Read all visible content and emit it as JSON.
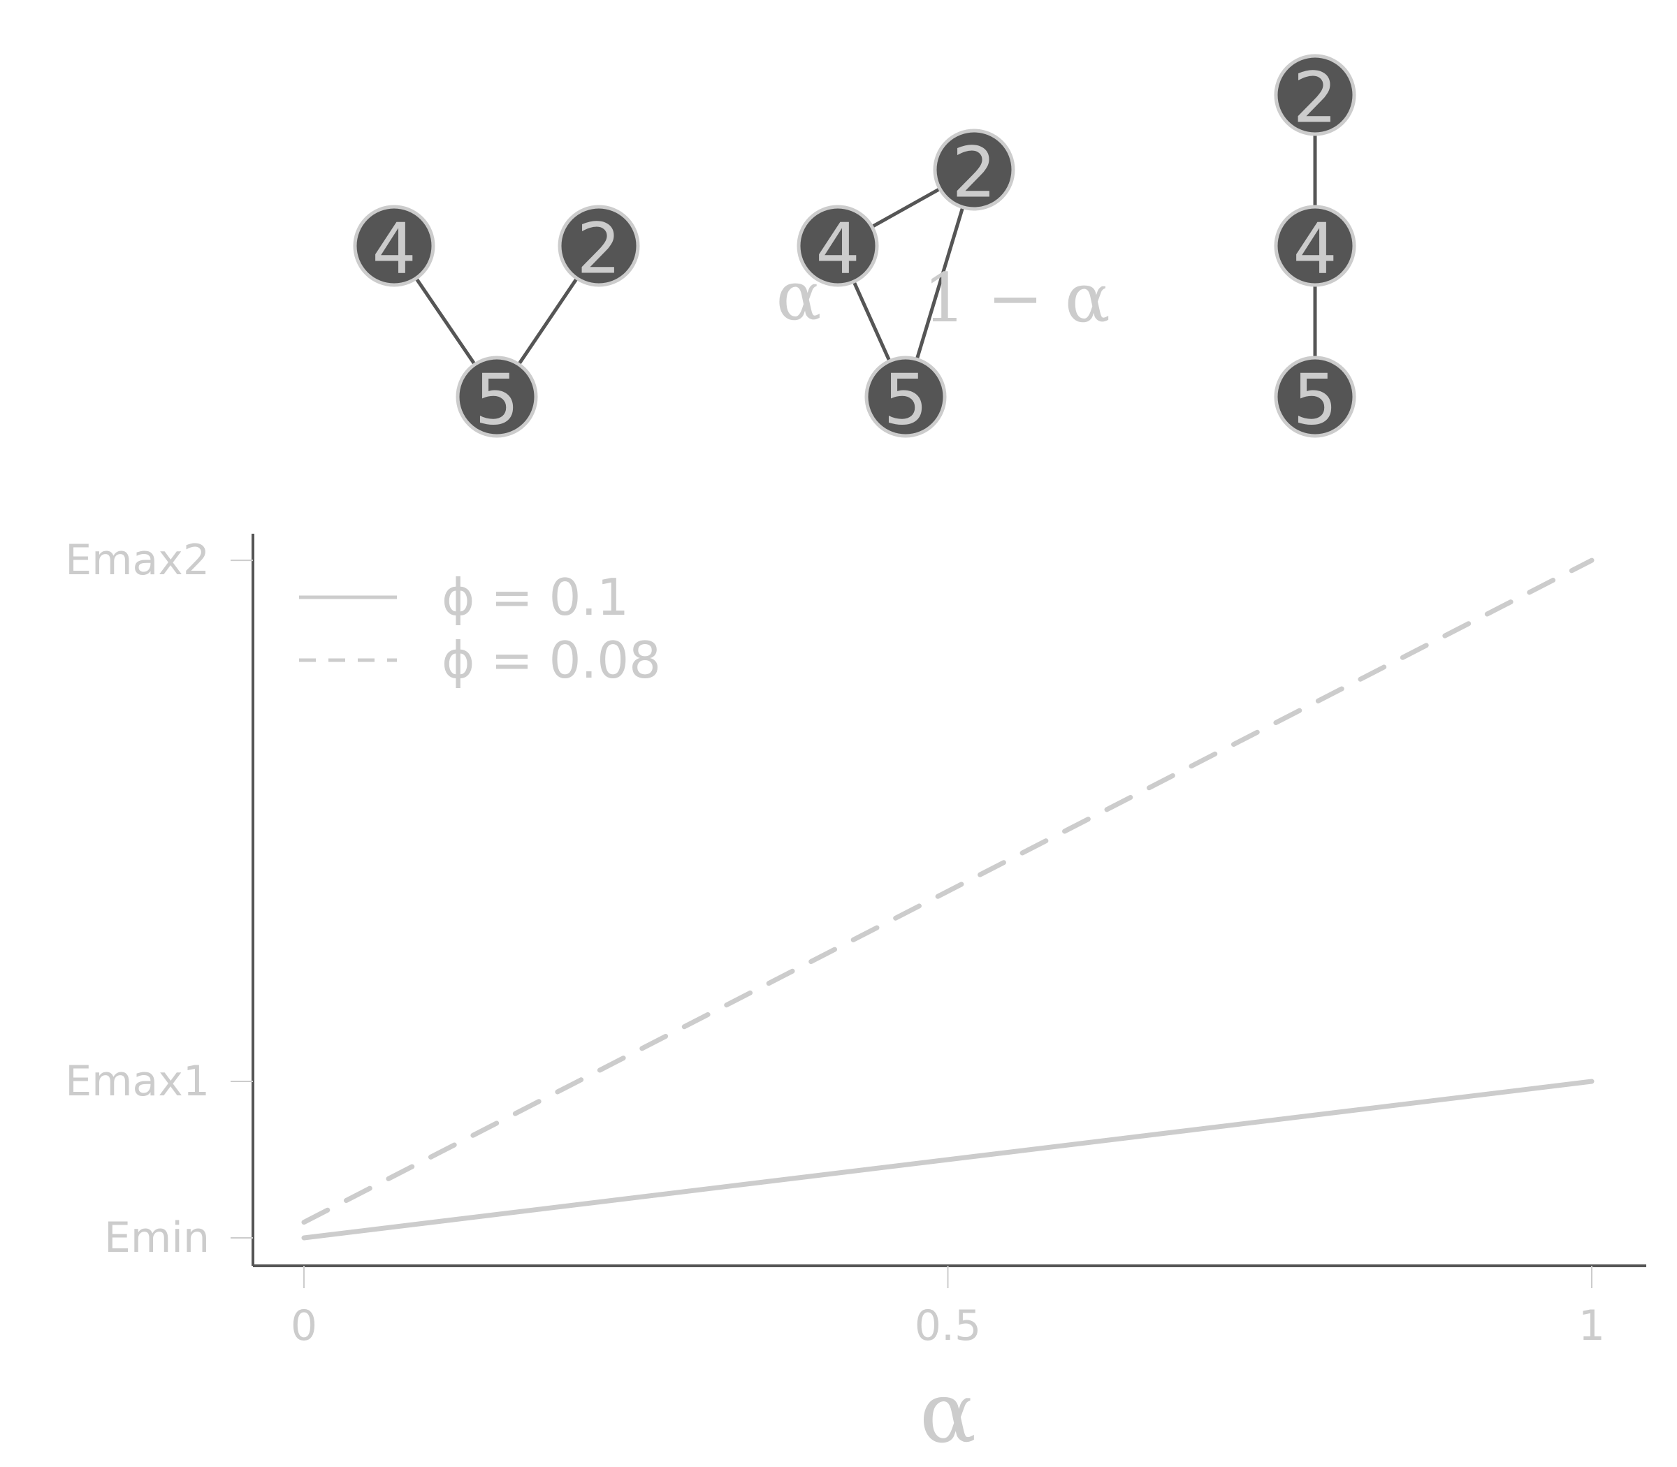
{
  "colors": {
    "node_fill": "#555555",
    "node_stroke": "#cccccc",
    "node_text": "#cccccc",
    "edge": "#555555",
    "axis": "#555555",
    "text": "#cccccc",
    "line": "#cccccc"
  },
  "graphs": [
    {
      "nodes": [
        {
          "id": "4",
          "label": "4"
        },
        {
          "id": "2",
          "label": "2"
        },
        {
          "id": "5",
          "label": "5"
        }
      ],
      "edges": [
        [
          "4",
          "5"
        ],
        [
          "2",
          "5"
        ]
      ],
      "annotations": []
    },
    {
      "nodes": [
        {
          "id": "4",
          "label": "4"
        },
        {
          "id": "2",
          "label": "2"
        },
        {
          "id": "5",
          "label": "5"
        }
      ],
      "edges": [
        [
          "4",
          "2"
        ],
        [
          "4",
          "5"
        ],
        [
          "2",
          "5"
        ]
      ],
      "annotations": [
        {
          "text": "α"
        },
        {
          "text": "1 − α"
        }
      ]
    },
    {
      "nodes": [
        {
          "id": "2",
          "label": "2"
        },
        {
          "id": "4",
          "label": "4"
        },
        {
          "id": "5",
          "label": "5"
        }
      ],
      "edges": [
        [
          "2",
          "4"
        ],
        [
          "4",
          "5"
        ]
      ],
      "annotations": []
    }
  ],
  "chart_data": {
    "type": "line",
    "title": "",
    "xlabel": "α",
    "ylabel": "",
    "x_ticks": [
      {
        "value": 0,
        "label": "0"
      },
      {
        "value": 0.5,
        "label": "0.5"
      },
      {
        "value": 1,
        "label": "1"
      }
    ],
    "y_ticks": [
      {
        "value": 0,
        "label": "Emin"
      },
      {
        "value": 1,
        "label": "Emax1"
      },
      {
        "value": 4.33,
        "label": "Emax2"
      }
    ],
    "xlim": [
      -0.04,
      1.04
    ],
    "ylim": [
      -0.17,
      4.52
    ],
    "grid": false,
    "legend_position": "top-left",
    "series": [
      {
        "name": "ϕ = 0.1",
        "style": "solid",
        "x": [
          0,
          1
        ],
        "y": [
          0,
          1
        ]
      },
      {
        "name": "ϕ = 0.08",
        "style": "dashed",
        "x": [
          0,
          1
        ],
        "y": [
          0.1,
          4.33
        ]
      }
    ]
  }
}
